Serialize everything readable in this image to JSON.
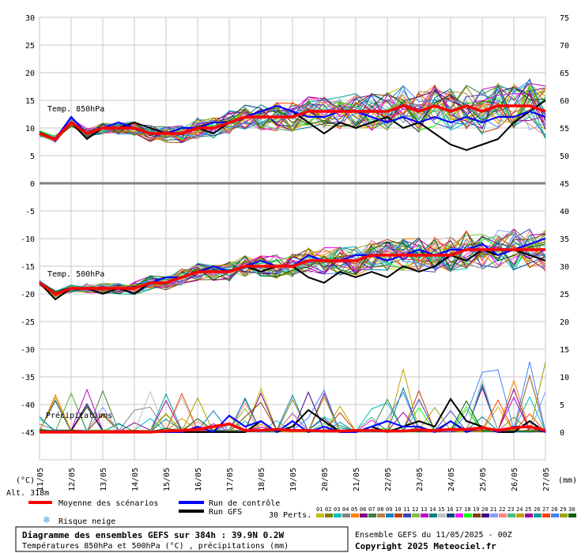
{
  "chart_data": {
    "type": "line",
    "title": "Diagramme des ensembles GEFS sur 384h : 39.9N 0.2W",
    "subtitle": "Températures 850hPa et 500hPa (°C) , précipitations (mm)",
    "run_info": "Ensemble GEFS du 11/05/2025 - 00Z",
    "copyright": "Copyright 2025 Meteociel.fr",
    "left_axis": {
      "unit": "(°C)",
      "ticks": [
        30,
        25,
        20,
        15,
        10,
        5,
        0,
        -5,
        -10,
        -15,
        -20,
        -25,
        -30,
        -35,
        -40,
        -45
      ],
      "range": [
        -45,
        30
      ]
    },
    "right_axis_temp": {
      "ticks": [
        75,
        70,
        65,
        60,
        55,
        50,
        45,
        40,
        35,
        30,
        25,
        20,
        15,
        10,
        5,
        0
      ]
    },
    "right_axis_unit": "(mm)",
    "altitude": "Alt. 318m",
    "x_axis": {
      "labels": [
        "11/05",
        "12/05",
        "13/05",
        "14/05",
        "15/05",
        "16/05",
        "17/05",
        "18/05",
        "19/05",
        "20/05",
        "21/05",
        "22/05",
        "23/05",
        "24/05",
        "25/05",
        "26/05",
        "27/05"
      ]
    },
    "panel_labels": {
      "t850": "Temp. 850hPa",
      "t500": "Temp. 500hPa",
      "precip": "Précipitations"
    },
    "legend": {
      "mean": "Moyenne des scénarios",
      "control": "Run de contrôle",
      "gfs": "Run GFS",
      "snow": "Risque neige",
      "perts": "30 Perts.",
      "numbers": [
        "01",
        "02",
        "03",
        "04",
        "05",
        "06",
        "07",
        "08",
        "09",
        "10",
        "11",
        "12",
        "13",
        "14",
        "15",
        "16",
        "17",
        "18",
        "19",
        "20",
        "21",
        "22",
        "23",
        "24",
        "25",
        "26",
        "27",
        "28",
        "29",
        "30"
      ],
      "colors": [
        "#c0c000",
        "#808000",
        "#00c0c0",
        "#808080",
        "#ff8000",
        "#800080",
        "#408040",
        "#c08040",
        "#0080c0",
        "#c04000",
        "#4040c0",
        "#80c040",
        "#c000c0",
        "#008080",
        "#c0c0c0",
        "#004080",
        "#ff00ff",
        "#00ff00",
        "#804000",
        "#400080",
        "#80a0ff",
        "#ff8080",
        "#40c080",
        "#c0a000",
        "#a000a0",
        "#00a0a0",
        "#ff4000",
        "#4080ff",
        "#a0a000",
        "#006000"
      ],
      "mean_color": "#ff0000",
      "control_color": "#0000ff",
      "gfs_color": "#000000"
    },
    "series": [
      {
        "name": "Moyenne des scénarios",
        "panel": "t850",
        "values": [
          9,
          8,
          11,
          9,
          10,
          10,
          10,
          9,
          9,
          9,
          10,
          10,
          11,
          12,
          12,
          12,
          12,
          13,
          13,
          13,
          13,
          13,
          13,
          14,
          13,
          14,
          13,
          14,
          13,
          14,
          14,
          14,
          13
        ]
      },
      {
        "name": "Run de contrôle",
        "panel": "t850",
        "values": [
          9,
          8,
          12,
          9,
          10,
          11,
          10,
          9,
          9,
          10,
          10,
          11,
          11,
          12,
          13,
          14,
          13,
          12,
          12,
          13,
          13,
          12,
          11,
          12,
          11,
          12,
          11,
          12,
          11,
          12,
          12,
          13,
          12
        ]
      },
      {
        "name": "Run GFS",
        "panel": "t850",
        "values": [
          9,
          8,
          11,
          8,
          10,
          10,
          11,
          10,
          9,
          10,
          10,
          9,
          11,
          12,
          13,
          14,
          13,
          11,
          9,
          11,
          10,
          11,
          12,
          10,
          11,
          9,
          7,
          6,
          7,
          8,
          11,
          13,
          15
        ]
      },
      {
        "name": "Moyenne des scénarios",
        "panel": "t500",
        "values": [
          -18,
          -20,
          -19,
          -19,
          -19,
          -19,
          -19,
          -18,
          -18,
          -17,
          -16,
          -16,
          -16,
          -15,
          -15,
          -15,
          -15,
          -14,
          -14,
          -14,
          -14,
          -13,
          -13,
          -13,
          -13,
          -13,
          -13,
          -12,
          -12,
          -12,
          -12,
          -12,
          -12
        ]
      },
      {
        "name": "Run de contrôle",
        "panel": "t500",
        "values": [
          -18,
          -20,
          -19,
          -19,
          -19,
          -19,
          -19,
          -18,
          -17,
          -17,
          -16,
          -15,
          -16,
          -15,
          -14,
          -15,
          -15,
          -13,
          -14,
          -14,
          -13,
          -13,
          -14,
          -13,
          -12,
          -13,
          -12,
          -12,
          -11,
          -13,
          -12,
          -11,
          -10
        ]
      },
      {
        "name": "Run GFS",
        "panel": "t500",
        "values": [
          -18,
          -21,
          -19,
          -19,
          -20,
          -19,
          -20,
          -18,
          -18,
          -17,
          -16,
          -15,
          -16,
          -15,
          -16,
          -15,
          -15,
          -17,
          -18,
          -16,
          -17,
          -16,
          -17,
          -15,
          -16,
          -15,
          -13,
          -14,
          -12,
          -13,
          -12,
          -13,
          -14
        ]
      },
      {
        "name": "Moyenne des scénarios",
        "panel": "precip",
        "values": [
          0,
          0,
          0,
          0,
          0,
          0,
          0,
          0,
          0.2,
          0.3,
          0.5,
          1,
          1.5,
          0.3,
          0.3,
          0.5,
          0.3,
          0.3,
          0.2,
          0.2,
          0.3,
          0.3,
          0.2,
          0.2,
          0.4,
          0.3,
          0.5,
          0.5,
          0.8,
          0.3,
          0.8,
          1,
          0.3
        ]
      },
      {
        "name": "Run de contrôle",
        "panel": "precip",
        "values": [
          0,
          0,
          0,
          0,
          0,
          0,
          0,
          0,
          0,
          0,
          1,
          0,
          3,
          1,
          2,
          0,
          2,
          0,
          1,
          0,
          0,
          1,
          2,
          1,
          1,
          0,
          2,
          0,
          1,
          0,
          1,
          1,
          0
        ]
      },
      {
        "name": "Run GFS",
        "panel": "precip",
        "values": [
          0,
          0,
          0,
          0,
          0,
          0,
          0,
          0,
          0,
          0,
          0,
          0,
          0,
          0,
          2,
          0,
          1,
          4,
          2,
          0,
          0,
          1,
          0,
          1,
          2,
          1,
          6,
          2,
          1,
          0,
          0,
          2,
          0
        ]
      }
    ]
  }
}
